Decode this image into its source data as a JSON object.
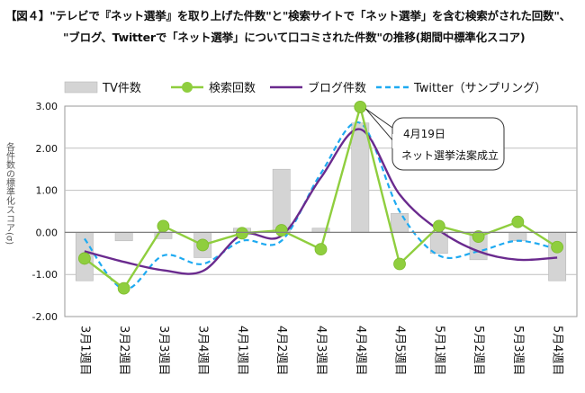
{
  "chart_data": {
    "type": "bar+line",
    "title_line1": "【図４】\"テレビで『ネット選挙』を取り上げた件数\"と\"検索サイトで「ネット選挙」を含む検索がされた回数\"、",
    "title_line2": "\"ブログ、Twitterで「ネット選挙」について口コミされた件数\"の推移(期間中標準化スコア)",
    "ylabel": "各件数の標準化スコア(σ)",
    "ylim": [
      -2.0,
      3.0
    ],
    "yticks": [
      "3.00",
      "2.00",
      "1.00",
      "0.00",
      "-1.00",
      "-2.00"
    ],
    "ytick_values": [
      3,
      2,
      1,
      0,
      -1,
      -2
    ],
    "categories": [
      "3月1週目",
      "3月2週目",
      "3月3週目",
      "3月4週目",
      "4月1週目",
      "4月2週目",
      "4月3週目",
      "4月4週目",
      "4月5週目",
      "5月1週目",
      "5月2週目",
      "5月3週目",
      "5月4週目"
    ],
    "legend_position": "top",
    "series": [
      {
        "name": "TV件数",
        "kind": "bar",
        "color": "#d4d4d4",
        "values": [
          -1.15,
          -0.2,
          -0.15,
          -0.6,
          0.1,
          1.5,
          0.1,
          2.6,
          0.45,
          -0.5,
          -0.65,
          -0.2,
          -1.15
        ]
      },
      {
        "name": "検索回数",
        "kind": "line-marker",
        "color": "#8fce3e",
        "values": [
          -0.62,
          -1.33,
          0.15,
          -0.3,
          -0.02,
          0.05,
          -0.4,
          2.98,
          -0.75,
          0.15,
          -0.1,
          0.25,
          -0.35
        ]
      },
      {
        "name": "ブログ件数",
        "kind": "line-smooth",
        "color": "#6a2a8e",
        "values": [
          -0.45,
          -0.7,
          -0.9,
          -0.92,
          -0.05,
          -0.08,
          1.3,
          2.45,
          0.9,
          0.05,
          -0.45,
          -0.65,
          -0.6
        ]
      },
      {
        "name": "Twitter（サンプリング）",
        "kind": "line-dashed",
        "color": "#1eaaf1",
        "values": [
          -0.15,
          -1.35,
          -0.55,
          -0.75,
          -0.2,
          -0.2,
          1.4,
          2.6,
          0.5,
          -0.55,
          -0.45,
          -0.2,
          -0.4
        ]
      }
    ],
    "annotation": {
      "line1": "4月19日",
      "line2": "ネット選挙法案成立",
      "category_index": 7
    },
    "grid": "horizontal"
  }
}
